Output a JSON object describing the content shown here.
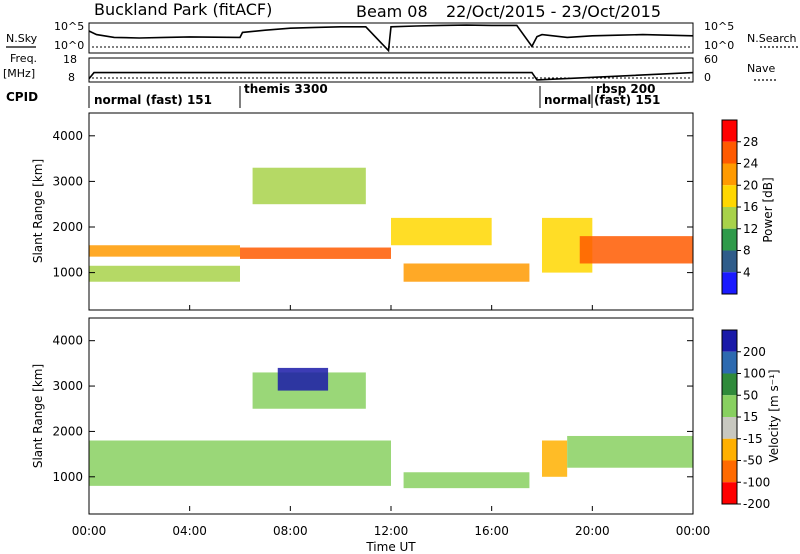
{
  "header": {
    "station": "Buckland Park (fitACF)",
    "beam": "Beam 08",
    "date_range": "22/Oct/2015 - 23/Oct/2015"
  },
  "left_labels": {
    "nsky": "N.Sky",
    "freq": "Freq.",
    "freq_unit": "[MHz]",
    "cpid": "CPID"
  },
  "right_labels": {
    "nsearch": "N.Search",
    "nave": "Nave"
  },
  "nsky_ticks": [
    "10^5",
    "10^0"
  ],
  "nsearch_ticks": [
    "10^5",
    "10^0"
  ],
  "freq_ticks": [
    "18",
    "8"
  ],
  "nave_ticks": [
    "60",
    "0"
  ],
  "cpid_segments": [
    {
      "label": "normal (fast) 151",
      "start_h": 0,
      "end_h": 6
    },
    {
      "label": "themis 3300",
      "start_h": 6,
      "end_h": 17.9
    },
    {
      "label": "normal",
      "start_h": 17.9,
      "end_h": 19.2
    },
    {
      "label": "rbsp 200",
      "start_h": 19.2,
      "end_h": 24
    },
    {
      "label": "(fast) 151",
      "start_h": 19.2,
      "end_h": 24
    }
  ],
  "colorbar_power": {
    "label": "Power [dB]",
    "ticks": [
      "28",
      "24",
      "20",
      "16",
      "12",
      "8",
      "4"
    ],
    "colors": [
      "#ff0000",
      "#ff5a00",
      "#ff9a00",
      "#ffd700",
      "#a8d24a",
      "#2f9a4a",
      "#2f5c8a",
      "#1a1aff"
    ]
  },
  "colorbar_velocity": {
    "label": "Velocity [m s⁻¹]",
    "ticks": [
      "200",
      "100",
      "50",
      "15",
      "-15",
      "-50",
      "-100",
      "-200"
    ],
    "colors": [
      "#1a1aa8",
      "#2d6ab0",
      "#2f8a3a",
      "#88d060",
      "#c8c8c0",
      "#ffb000",
      "#ff6a00",
      "#ff0000"
    ]
  },
  "y_axis_label": "Slant Range [km]",
  "y_ticks": [
    "4000",
    "3000",
    "2000",
    "1000"
  ],
  "x_ticks": [
    "00:00",
    "04:00",
    "08:00",
    "12:00",
    "16:00",
    "20:00",
    "00:00"
  ],
  "x_label": "Time UT",
  "chart_data": [
    {
      "type": "line",
      "name": "N.Sky",
      "x_hours": [
        0,
        0.3,
        1,
        2,
        3,
        4,
        5,
        6,
        6.1,
        7,
        8,
        9,
        10,
        11,
        11.9,
        12,
        13,
        14,
        15,
        16,
        17,
        17.6,
        17.8,
        18,
        19,
        20,
        21,
        22,
        23,
        24
      ],
      "y_frac": [
        0.75,
        0.62,
        0.52,
        0.5,
        0.52,
        0.54,
        0.53,
        0.52,
        0.7,
        0.78,
        0.85,
        0.88,
        0.9,
        0.9,
        0.05,
        0.9,
        0.93,
        0.95,
        0.96,
        0.95,
        0.95,
        0.2,
        0.55,
        0.62,
        0.52,
        0.58,
        0.6,
        0.62,
        0.6,
        0.58
      ]
    },
    {
      "type": "line",
      "name": "Freq.",
      "x_hours": [
        0,
        0.2,
        6,
        11.9,
        12,
        17.6,
        17.8,
        24
      ],
      "y_frac": [
        0.1,
        0.38,
        0.38,
        0.38,
        0.38,
        0.38,
        0.05,
        0.38
      ]
    },
    {
      "type": "heatmap",
      "title": "Power [dB]",
      "x": "Time UT (hours)",
      "y": "Slant Range [km]",
      "xlim": [
        0,
        24
      ],
      "ylim": [
        180,
        4500
      ],
      "clim": [
        0,
        30
      ],
      "bands": [
        {
          "x": [
            0,
            6
          ],
          "y": [
            1350,
            1600
          ],
          "value": 20
        },
        {
          "x": [
            6,
            12
          ],
          "y": [
            1300,
            1550
          ],
          "value": 24
        },
        {
          "x": [
            12,
            16
          ],
          "y": [
            1600,
            2200
          ],
          "value": 18
        },
        {
          "x": [
            0,
            6
          ],
          "y": [
            800,
            1150
          ],
          "value": 12
        },
        {
          "x": [
            6.5,
            11
          ],
          "y": [
            2500,
            3300
          ],
          "value": 14
        },
        {
          "x": [
            12.5,
            17.5
          ],
          "y": [
            800,
            1200
          ],
          "value": 22
        },
        {
          "x": [
            18,
            20
          ],
          "y": [
            1000,
            2200
          ],
          "value": 16
        },
        {
          "x": [
            19.5,
            24
          ],
          "y": [
            1200,
            1800
          ],
          "value": 26
        }
      ]
    },
    {
      "type": "heatmap",
      "title": "Velocity [m s-1]",
      "x": "Time UT (hours)",
      "y": "Slant Range [km]",
      "xlim": [
        0,
        24
      ],
      "ylim": [
        180,
        4500
      ],
      "clim": [
        -200,
        200
      ],
      "bands": [
        {
          "x": [
            0,
            12
          ],
          "y": [
            800,
            1800
          ],
          "value": 0
        },
        {
          "x": [
            6.5,
            11
          ],
          "y": [
            2500,
            3300
          ],
          "value": 0
        },
        {
          "x": [
            7.5,
            9.5
          ],
          "y": [
            2900,
            3400
          ],
          "value": 150
        },
        {
          "x": [
            12.5,
            17.5
          ],
          "y": [
            750,
            1100
          ],
          "value": 40
        },
        {
          "x": [
            18,
            19
          ],
          "y": [
            1000,
            1800
          ],
          "value": -80
        },
        {
          "x": [
            19,
            24
          ],
          "y": [
            1200,
            1900
          ],
          "value": 0
        }
      ]
    }
  ]
}
